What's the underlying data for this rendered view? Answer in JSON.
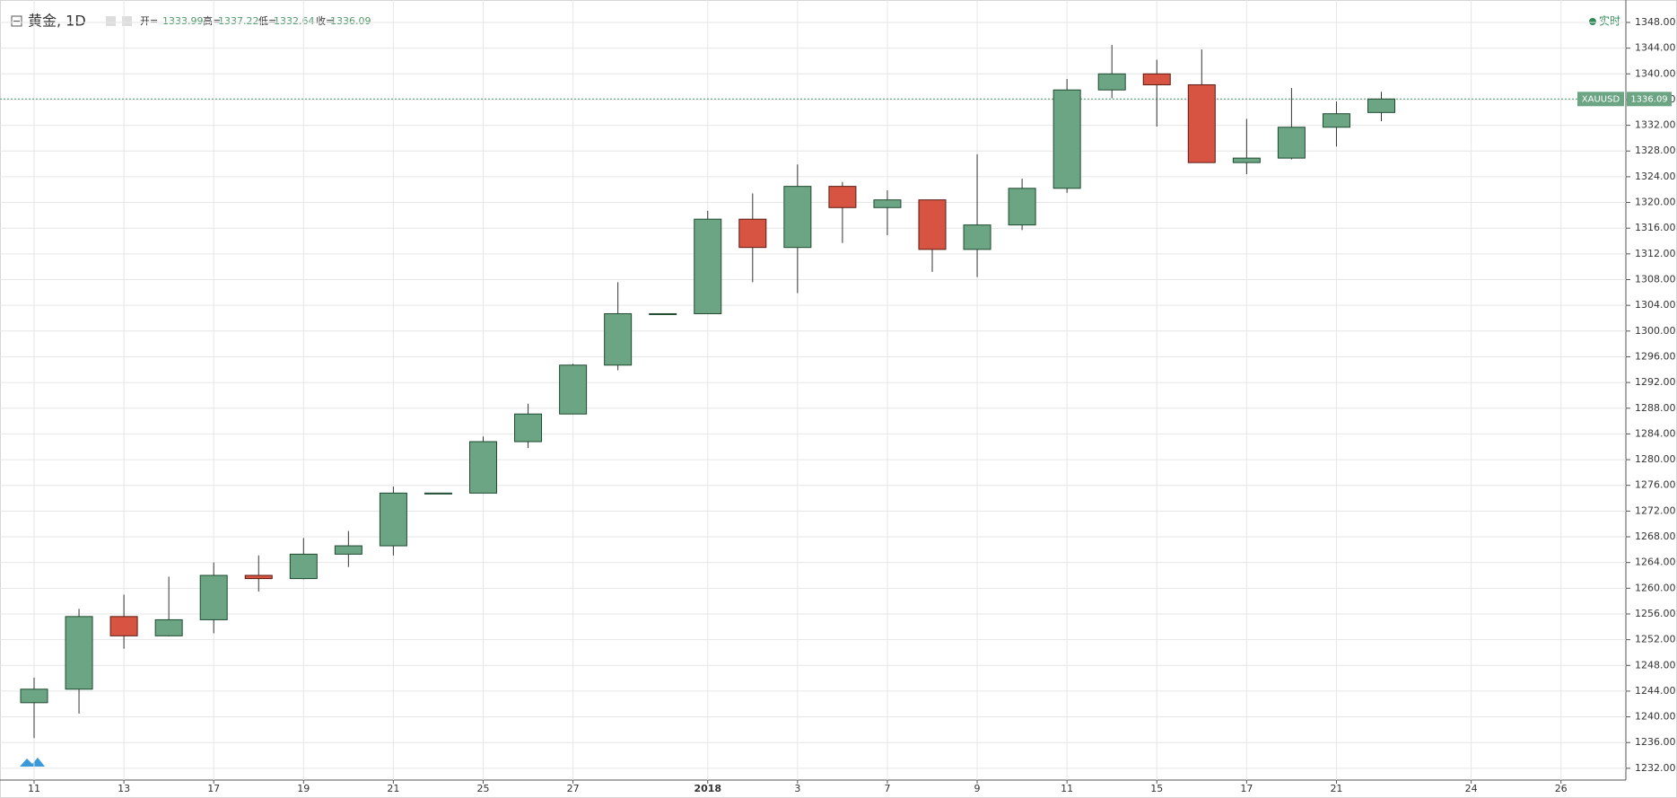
{
  "chart_data": {
    "type": "candlestick",
    "title": "黄金, 1D",
    "legend": [
      {
        "label": "开=",
        "value": 1333.99
      },
      {
        "label": "高=",
        "value": 1337.22
      },
      {
        "label": "低=",
        "value": 1332.64
      },
      {
        "label": "收=",
        "value": 1336.09
      }
    ],
    "status_label": "实时",
    "symbol_label": "XAUUSD",
    "last_price": 1336.09,
    "categories": [
      "11",
      null,
      "13",
      null,
      "17",
      null,
      "19",
      null,
      "21",
      null,
      "25",
      null,
      "27",
      null,
      null,
      "2018",
      null,
      "3",
      null,
      "7",
      null,
      "9",
      null,
      "11",
      null,
      "15",
      null,
      "17",
      null,
      "21",
      null,
      null,
      "24",
      null,
      "26"
    ],
    "open": [
      1242.2,
      1244.3,
      1255.6,
      1252.6,
      1255.1,
      1262.0,
      1261.5,
      1265.3,
      1266.6,
      1274.8,
      1274.8,
      1282.8,
      1287.1,
      1294.7,
      1302.7,
      1302.7,
      1317.4,
      1313.0,
      1322.5,
      1319.2,
      1320.4,
      1312.7,
      1316.5,
      1322.2,
      1337.5,
      1340.0,
      1338.3,
      1326.2,
      1326.9,
      1331.7,
      1333.99,
      null,
      null,
      null,
      null
    ],
    "high": [
      1246.1,
      1256.8,
      1259.0,
      1261.8,
      1264.0,
      1265.1,
      1267.8,
      1268.9,
      1275.8,
      1274.8,
      1283.6,
      1288.7,
      1294.9,
      1307.6,
      1302.7,
      1318.7,
      1321.4,
      1325.9,
      1323.2,
      1321.9,
      1320.4,
      1327.5,
      1323.7,
      1339.2,
      1344.5,
      1342.2,
      1343.8,
      1333.0,
      1337.8,
      1335.7,
      1337.22,
      null,
      null,
      null,
      null
    ],
    "low": [
      1236.7,
      1240.5,
      1250.6,
      1252.5,
      1253.0,
      1259.5,
      1261.4,
      1263.3,
      1265.1,
      1274.8,
      1274.8,
      1281.8,
      1287.1,
      1293.9,
      1302.7,
      1302.7,
      1307.6,
      1305.9,
      1313.7,
      1314.9,
      1309.2,
      1308.4,
      1315.7,
      1321.5,
      1336.2,
      1331.8,
      1326.2,
      1324.4,
      1326.7,
      1328.7,
      1332.64,
      null,
      null,
      null,
      null
    ],
    "close": [
      1244.3,
      1255.6,
      1252.6,
      1255.1,
      1262.0,
      1261.5,
      1265.3,
      1266.6,
      1274.8,
      1274.8,
      1282.8,
      1287.1,
      1294.7,
      1302.7,
      1302.7,
      1317.4,
      1313.0,
      1322.5,
      1319.2,
      1320.4,
      1312.7,
      1316.5,
      1322.2,
      1337.5,
      1340.0,
      1338.3,
      1326.2,
      1326.9,
      1331.7,
      1333.8,
      1336.09,
      null,
      null,
      null,
      null
    ],
    "up_color": "#6ba583",
    "down_color": "#d75442",
    "ylim": [
      1230.17,
      1350.65
    ],
    "yticks": [
      {
        "value": 1232,
        "label": "1232.00"
      },
      {
        "value": 1236,
        "label": "1236.00"
      },
      {
        "value": 1240,
        "label": "1240.00"
      },
      {
        "value": 1244,
        "label": "1244.00"
      },
      {
        "value": 1248,
        "label": "1248.00"
      },
      {
        "value": 1252,
        "label": "1252.00"
      },
      {
        "value": 1256,
        "label": "1256.00"
      },
      {
        "value": 1260,
        "label": "1260.00"
      },
      {
        "value": 1264,
        "label": "1264.00"
      },
      {
        "value": 1268,
        "label": "1268.00"
      },
      {
        "value": 1272,
        "label": "1272.00"
      },
      {
        "value": 1276,
        "label": "1276.00"
      },
      {
        "value": 1280,
        "label": "1280.00"
      },
      {
        "value": 1284,
        "label": "1284.00"
      },
      {
        "value": 1288,
        "label": "1288.00"
      },
      {
        "value": 1292,
        "label": "1292.00"
      },
      {
        "value": 1296,
        "label": "1296.00"
      },
      {
        "value": 1300,
        "label": "1300.00"
      },
      {
        "value": 1304,
        "label": "1304.00"
      },
      {
        "value": 1308,
        "label": "1308.00"
      },
      {
        "value": 1312,
        "label": "1312.00"
      },
      {
        "value": 1316,
        "label": "1316.00"
      },
      {
        "value": 1320,
        "label": "1320.00"
      },
      {
        "value": 1324,
        "label": "1324.00"
      },
      {
        "value": 1328,
        "label": "1328.00"
      },
      {
        "value": 1332,
        "label": "1332.00"
      },
      {
        "value": 1336,
        "label": "1336.00"
      },
      {
        "value": 1340,
        "label": "1340.00"
      },
      {
        "value": 1344,
        "label": "1344.00"
      },
      {
        "value": 1348,
        "label": "1348.00"
      }
    ],
    "grid": true
  }
}
